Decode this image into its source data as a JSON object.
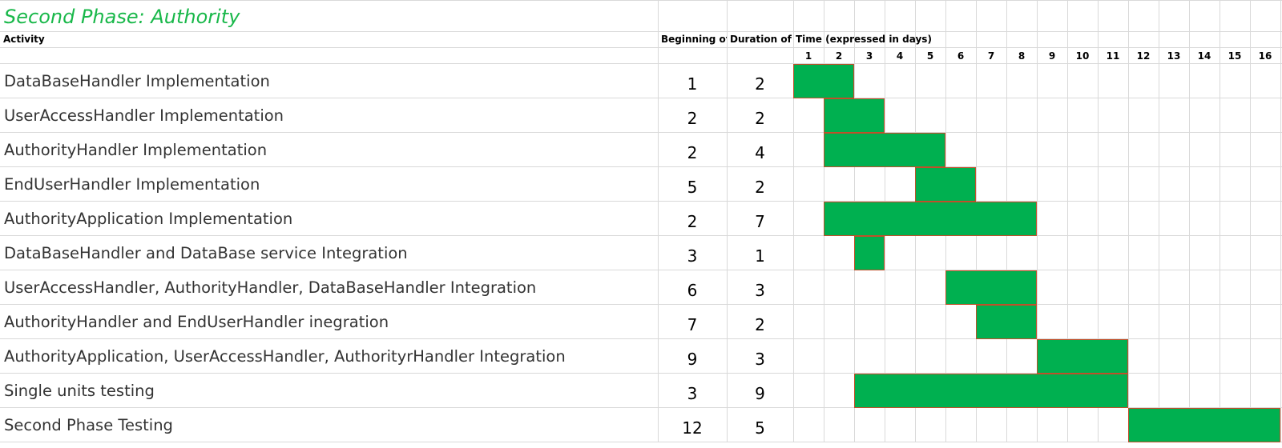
{
  "sheet": {
    "title": "Second Phase: Authority",
    "header": {
      "activity": "Activity",
      "beginning": "Beginning of",
      "duration": "Duration of t",
      "time": "Time (expressed in days)"
    }
  },
  "chart_data": {
    "type": "gantt",
    "title": "Second Phase: Authority",
    "xlabel": "Time (expressed in days)",
    "days": [
      "1",
      "2",
      "3",
      "4",
      "5",
      "6",
      "7",
      "8",
      "9",
      "10",
      "11",
      "12",
      "13",
      "14",
      "15",
      "16"
    ],
    "tasks": [
      {
        "activity": "DataBaseHandler Implementation",
        "begin": 1,
        "duration": 2
      },
      {
        "activity": "UserAccessHandler Implementation",
        "begin": 2,
        "duration": 2
      },
      {
        "activity": "AuthorityHandler Implementation",
        "begin": 2,
        "duration": 4
      },
      {
        "activity": "EndUserHandler Implementation",
        "begin": 5,
        "duration": 2
      },
      {
        "activity": "AuthorityApplication Implementation",
        "begin": 2,
        "duration": 7
      },
      {
        "activity": "DataBaseHandler and DataBase service Integration",
        "begin": 3,
        "duration": 1
      },
      {
        "activity": "UserAccessHandler, AuthorityHandler, DataBaseHandler Integration",
        "begin": 6,
        "duration": 3
      },
      {
        "activity": "AuthorityHandler and EndUserHandler inegration",
        "begin": 7,
        "duration": 2
      },
      {
        "activity": "AuthorityApplication, UserAccessHandler, AuthorityrHandler Integration",
        "begin": 9,
        "duration": 3
      },
      {
        "activity": "Single units testing",
        "begin": 3,
        "duration": 9
      },
      {
        "activity": "Second Phase Testing",
        "begin": 12,
        "duration": 5
      }
    ],
    "colors": {
      "bar_fill": "#00b050",
      "bar_border": "#c0502a",
      "title": "#19b84a"
    }
  }
}
